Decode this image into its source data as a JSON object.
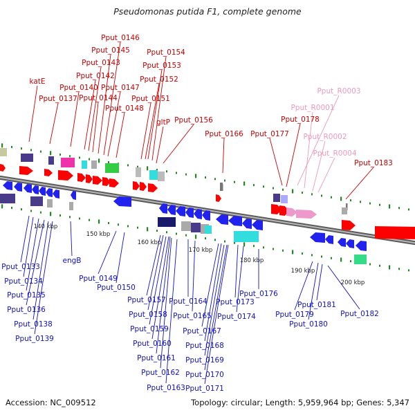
{
  "title": "Pseudomonas putida F1, complete genome",
  "accession": "Accession: NC_009512",
  "summary": "Topology: circular; Length: 5,959,964 bp; Genes: 5,347",
  "colors": {
    "forward_label": "#cc0000",
    "rna_label": "#ee99bb",
    "reverse_label": "#1010cc"
  },
  "scale_labels": [
    "140 kbp",
    "150 kbp",
    "160 kbp",
    "170 kbp",
    "180 kbp",
    "190 kbp",
    "200 kbp"
  ],
  "forward_genes": [
    "katE",
    "Pput_0137",
    "Pput_0140",
    "Pput_0142",
    "Pput_0143",
    "Pput_0144",
    "Pput_0145",
    "Pput_0146",
    "Pput_0147",
    "Pput_0148",
    "Pput_0151",
    "Pput_0152",
    "Pput_0153",
    "Pput_0154",
    "gltP",
    "Pput_0156",
    "Pput_0166",
    "Pput_0177",
    "Pput_0178",
    "Pput_0183"
  ],
  "rna_genes": [
    "Pput_R0003",
    "Pput_R0001",
    "Pput_R0002",
    "Pput_R0004"
  ],
  "reverse_genes": [
    "Pput_0133",
    "Pput_0134",
    "Pput_0135",
    "Pput_0136",
    "Pput_0138",
    "Pput_0139",
    "engB",
    "Pput_0149",
    "Pput_0150",
    "Pput_0157",
    "Pput_0158",
    "Pput_0159",
    "Pput_0160",
    "Pput_0161",
    "Pput_0162",
    "Pput_0163",
    "Pput_0164",
    "Pput_0165",
    "Pput_0167",
    "Pput_0168",
    "Pput_0169",
    "Pput_0170",
    "Pput_0171",
    "Pput_0173",
    "Pput_0174",
    "Pput_0176",
    "Pput_0179",
    "Pput_0180",
    "Pput_0181",
    "Pput_0182"
  ]
}
